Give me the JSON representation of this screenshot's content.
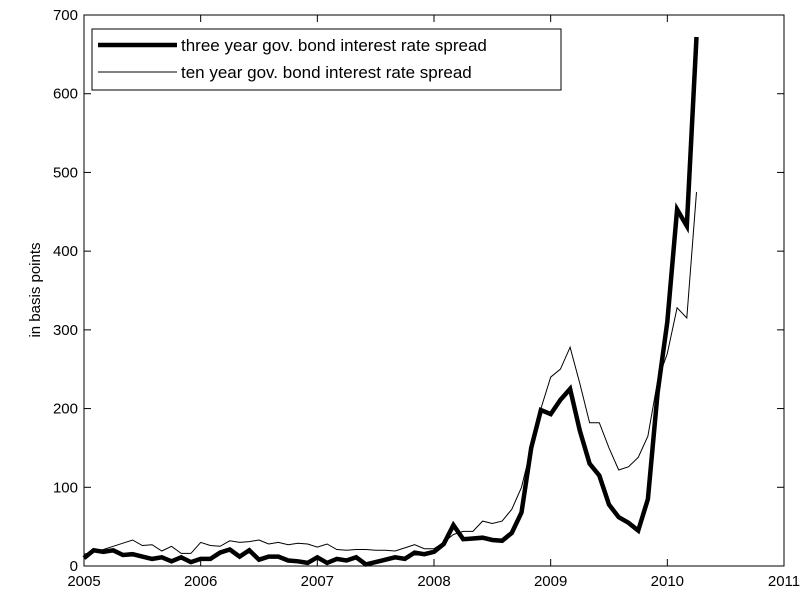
{
  "chart_data": {
    "type": "line",
    "title": "",
    "xlabel": "",
    "ylabel": "in basis points",
    "xlim": [
      2005,
      2011
    ],
    "ylim": [
      0,
      700
    ],
    "xticks": [
      "2005",
      "2006",
      "2007",
      "2008",
      "2009",
      "2010",
      "2011"
    ],
    "yticks": [
      "0",
      "100",
      "200",
      "300",
      "400",
      "500",
      "600",
      "700"
    ],
    "grid": false,
    "legend_position": "top-left",
    "series": [
      {
        "name": "three year gov. bond interest rate spread",
        "color": "#000000",
        "style": "thick",
        "x": [
          2005.0,
          2005.0833,
          2005.1667,
          2005.25,
          2005.3333,
          2005.4167,
          2005.5,
          2005.5833,
          2005.6667,
          2005.75,
          2005.8333,
          2005.9167,
          2006.0,
          2006.0833,
          2006.1667,
          2006.25,
          2006.3333,
          2006.4167,
          2006.5,
          2006.5833,
          2006.6667,
          2006.75,
          2006.8333,
          2006.9167,
          2007.0,
          2007.0833,
          2007.1667,
          2007.25,
          2007.3333,
          2007.4167,
          2007.5,
          2007.5833,
          2007.6667,
          2007.75,
          2007.8333,
          2007.9167,
          2008.0,
          2008.0833,
          2008.1667,
          2008.25,
          2008.3333,
          2008.4167,
          2008.5,
          2008.5833,
          2008.6667,
          2008.75,
          2008.8333,
          2008.9167,
          2009.0,
          2009.0833,
          2009.1667,
          2009.25,
          2009.3333,
          2009.4167,
          2009.5,
          2009.5833,
          2009.6667,
          2009.75,
          2009.8333,
          2009.9167,
          2010.0,
          2010.0833,
          2010.1667,
          2010.25
        ],
        "values": [
          10,
          20,
          18,
          20,
          14,
          15,
          12,
          9,
          11,
          6,
          11,
          5,
          9,
          9,
          17,
          21,
          12,
          20,
          8,
          12,
          12,
          7,
          6,
          4,
          11,
          4,
          9,
          7,
          11,
          2,
          5,
          8,
          11,
          9,
          17,
          15,
          18,
          28,
          52,
          34,
          35,
          36,
          33,
          32,
          42,
          68,
          150,
          198,
          193,
          211,
          225,
          172,
          130,
          115,
          78,
          62,
          55,
          45,
          85,
          220,
          310,
          453,
          432,
          672
        ]
      },
      {
        "name": "ten year gov. bond interest rate spread",
        "color": "#000000",
        "style": "thin",
        "x": [
          2005.0,
          2005.0833,
          2005.1667,
          2005.25,
          2005.3333,
          2005.4167,
          2005.5,
          2005.5833,
          2005.6667,
          2005.75,
          2005.8333,
          2005.9167,
          2006.0,
          2006.0833,
          2006.1667,
          2006.25,
          2006.3333,
          2006.4167,
          2006.5,
          2006.5833,
          2006.6667,
          2006.75,
          2006.8333,
          2006.9167,
          2007.0,
          2007.0833,
          2007.1667,
          2007.25,
          2007.3333,
          2007.4167,
          2007.5,
          2007.5833,
          2007.6667,
          2007.75,
          2007.8333,
          2007.9167,
          2008.0,
          2008.0833,
          2008.1667,
          2008.25,
          2008.3333,
          2008.4167,
          2008.5,
          2008.5833,
          2008.6667,
          2008.75,
          2008.8333,
          2008.9167,
          2009.0,
          2009.0833,
          2009.1667,
          2009.25,
          2009.3333,
          2009.4167,
          2009.5,
          2009.5833,
          2009.6667,
          2009.75,
          2009.8333,
          2009.9167,
          2010.0,
          2010.0833,
          2010.1667,
          2010.25
        ],
        "values": [
          15,
          18,
          21,
          25,
          29,
          33,
          26,
          27,
          19,
          25,
          16,
          16,
          30,
          26,
          25,
          32,
          30,
          31,
          33,
          28,
          30,
          27,
          29,
          28,
          24,
          28,
          21,
          20,
          21,
          21,
          20,
          20,
          19,
          23,
          27,
          22,
          22,
          30,
          40,
          44,
          44,
          57,
          54,
          57,
          72,
          100,
          150,
          200,
          240,
          250,
          278,
          232,
          182,
          182,
          150,
          122,
          126,
          138,
          165,
          235,
          270,
          328,
          315,
          475
        ]
      }
    ]
  }
}
